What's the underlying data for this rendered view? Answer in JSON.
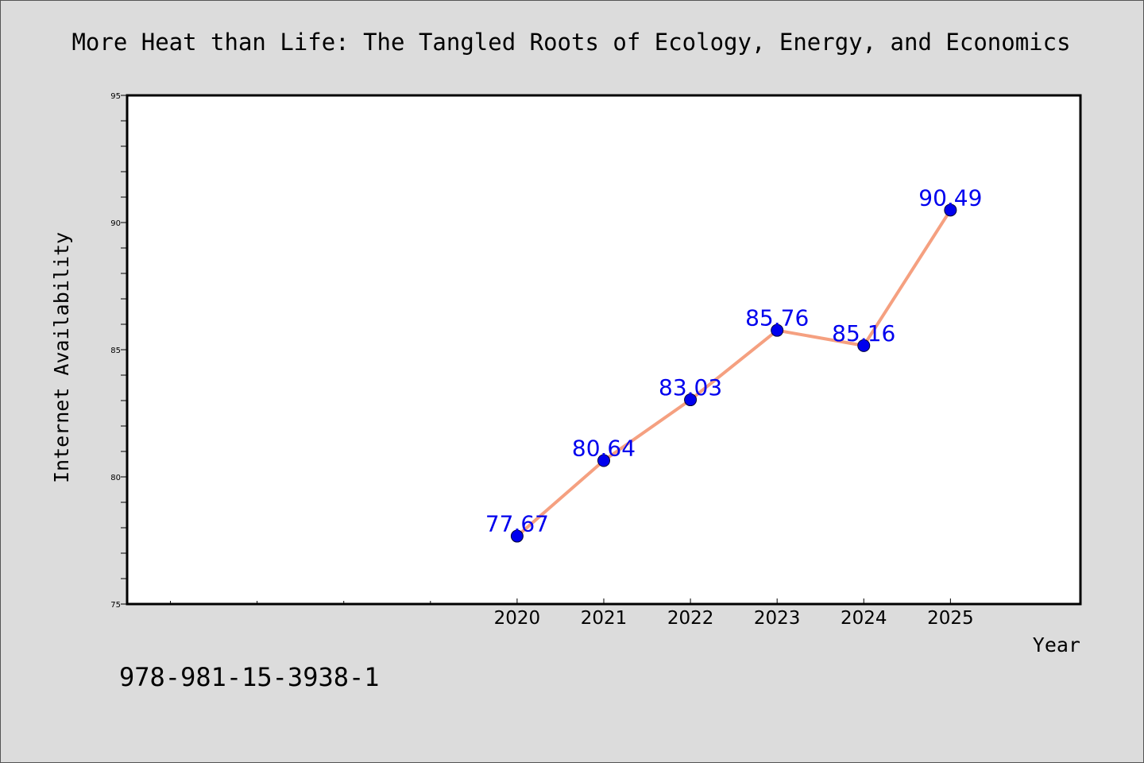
{
  "isbn": "978-981-15-3938-1",
  "colors": {
    "background": "#dcdcdc",
    "plot_background": "#ffffff",
    "line": "#f5a080",
    "marker": "#0000ee",
    "label": "#0000ee"
  },
  "chart_data": {
    "type": "line",
    "title": "More Heat than Life: The Tangled Roots of Ecology, Energy, and Economics",
    "xlabel": "Year",
    "ylabel": "Internet Availability",
    "ylim": [
      75,
      95
    ],
    "y_major_ticks": [
      75,
      80,
      85,
      90,
      95
    ],
    "y_minor_step": 1,
    "x_axis_min": 2015.5,
    "x_axis_max": 2026.5,
    "x_minor_ticks": [
      2016,
      2017,
      2018,
      2019
    ],
    "x": [
      2020,
      2021,
      2022,
      2023,
      2024,
      2025
    ],
    "x_tick_labels": [
      "2020",
      "2021",
      "2022",
      "2023",
      "2024",
      "2025"
    ],
    "values": [
      77.67,
      80.64,
      83.03,
      85.76,
      85.16,
      90.49
    ],
    "data_labels": [
      "77.67",
      "80.64",
      "83.03",
      "85.76",
      "85.16",
      "90.49"
    ],
    "grid": false,
    "legend": "none"
  }
}
